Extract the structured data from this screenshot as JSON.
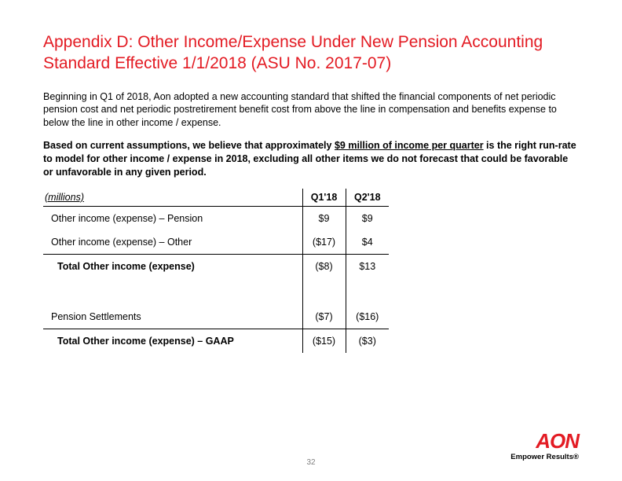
{
  "title": "Appendix D:  Other Income/Expense Under New Pension Accounting Standard Effective 1/1/2018 (ASU No. 2017-07)",
  "para1": "Beginning in Q1 of 2018, Aon adopted a new accounting standard that shifted the financial components of net periodic pension cost and net periodic postretirement benefit cost from above the line in compensation and benefits expense to below the line in other income / expense.",
  "para2_pre": "Based on current assumptions, we believe that approximately ",
  "para2_u": "$9 million of income per quarter",
  "para2_post": " is the right run-rate to model for other income / expense in 2018, excluding all other items we do not forecast that could be favorable or unfavorable in any given period.",
  "table": {
    "unit_label": "(millions)",
    "columns": [
      "Q1'18",
      "Q2'18"
    ],
    "rows": [
      {
        "label": "Other income (expense) – Pension",
        "values": [
          "$9",
          "$9"
        ],
        "indent": 1,
        "bold": false,
        "topBorder": false
      },
      {
        "label": "Other income (expense) – Other",
        "values": [
          "($17)",
          "$4"
        ],
        "indent": 1,
        "bold": false,
        "topBorder": false
      },
      {
        "label": "Total Other income (expense)",
        "values": [
          "($8)",
          "$13"
        ],
        "indent": 2,
        "bold": true,
        "topBorder": true
      },
      {
        "spacer": true
      },
      {
        "label": "Pension Settlements",
        "values": [
          "($7)",
          "($16)"
        ],
        "indent": 1,
        "bold": false,
        "topBorder": false
      },
      {
        "label": "Total Other income (expense) – GAAP",
        "values": [
          "($15)",
          "($3)"
        ],
        "indent": 2,
        "bold": true,
        "topBorder": true
      }
    ]
  },
  "page_number": "32",
  "logo": {
    "text": "AON",
    "tagline": "Empower Results®"
  },
  "colors": {
    "accent": "#e31b23",
    "text": "#000000",
    "muted": "#808080",
    "bg": "#ffffff"
  }
}
